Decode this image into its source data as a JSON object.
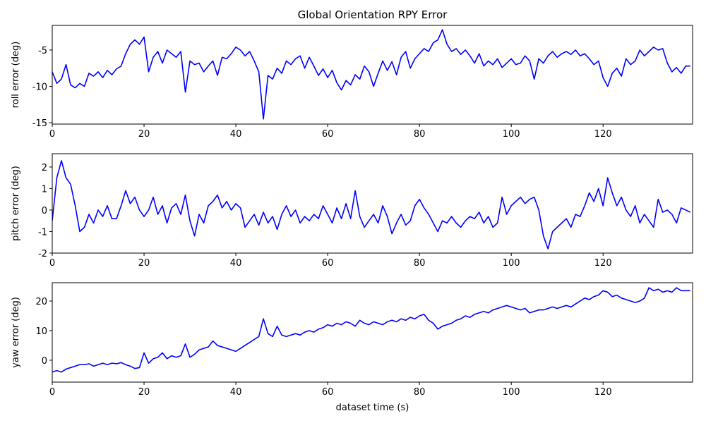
{
  "chart_data": [
    {
      "type": "line",
      "title": "Global Orientation RPY Error",
      "y_label": "roll error (deg)",
      "x": [
        0,
        1,
        2,
        3,
        4,
        5,
        6,
        7,
        8,
        9,
        10,
        11,
        12,
        13,
        14,
        15,
        16,
        17,
        18,
        19,
        20,
        21,
        22,
        23,
        24,
        25,
        26,
        27,
        28,
        29,
        30,
        31,
        32,
        33,
        34,
        35,
        36,
        37,
        38,
        39,
        40,
        41,
        42,
        43,
        44,
        45,
        46,
        47,
        48,
        49,
        50,
        51,
        52,
        53,
        54,
        55,
        56,
        57,
        58,
        59,
        60,
        61,
        62,
        63,
        64,
        65,
        66,
        67,
        68,
        69,
        70,
        71,
        72,
        73,
        74,
        75,
        76,
        77,
        78,
        79,
        80,
        81,
        82,
        83,
        84,
        85,
        86,
        87,
        88,
        89,
        90,
        91,
        92,
        93,
        94,
        95,
        96,
        97,
        98,
        99,
        100,
        101,
        102,
        103,
        104,
        105,
        106,
        107,
        108,
        109,
        110,
        111,
        112,
        113,
        114,
        115,
        116,
        117,
        118,
        119,
        120,
        121,
        122,
        123,
        124,
        125,
        126,
        127,
        128,
        129,
        130,
        131,
        132,
        133,
        134,
        135,
        136,
        137,
        138,
        139
      ],
      "series": [
        {
          "color": "#0000ff",
          "values": [
            -8,
            -9.6,
            -9,
            -7,
            -9.8,
            -10.2,
            -9.6,
            -10,
            -8.2,
            -8.6,
            -8,
            -8.8,
            -7.8,
            -8.4,
            -7.6,
            -7.2,
            -5.5,
            -4.2,
            -3.6,
            -4.2,
            -3.2,
            -8,
            -6,
            -5.2,
            -6.8,
            -5,
            -5.5,
            -6,
            -5.2,
            -10.8,
            -6.5,
            -7,
            -6.8,
            -8,
            -7.2,
            -6.5,
            -8.5,
            -6,
            -6.2,
            -5.5,
            -4.6,
            -5,
            -5.8,
            -5.2,
            -6.5,
            -8,
            -14.5,
            -8.5,
            -9,
            -7.5,
            -8.2,
            -6.5,
            -7,
            -6.2,
            -5.8,
            -7.5,
            -6,
            -7.2,
            -8.5,
            -7.6,
            -8.8,
            -7.8,
            -9.5,
            -10.5,
            -9.2,
            -9.8,
            -8.4,
            -9,
            -7.2,
            -8,
            -10,
            -8.2,
            -6.5,
            -7.8,
            -6.6,
            -8.4,
            -6,
            -5.2,
            -7.5,
            -6.2,
            -5.5,
            -4.8,
            -5.2,
            -4,
            -3.6,
            -2.2,
            -4.2,
            -5.2,
            -4.8,
            -5.6,
            -5,
            -5.8,
            -6.8,
            -5.5,
            -7.2,
            -6.5,
            -7,
            -6.2,
            -7.4,
            -6.8,
            -6.2,
            -7,
            -6.8,
            -5.8,
            -6.5,
            -9,
            -6.2,
            -6.8,
            -5.8,
            -5.2,
            -6,
            -5.5,
            -5.2,
            -5.6,
            -5,
            -5.8,
            -5.5,
            -6.2,
            -7,
            -6.5,
            -8.8,
            -10,
            -8.2,
            -7.5,
            -8.6,
            -6.2,
            -7,
            -6.5,
            -5,
            -5.8,
            -5.2,
            -4.6,
            -5,
            -4.8,
            -6.8,
            -8,
            -7.4,
            -8.2,
            -7.2,
            -7.2
          ]
        }
      ],
      "xlim": [
        0,
        139.5
      ],
      "ylim": [
        -15.2,
        -1.6
      ],
      "xticks": [
        0,
        20,
        40,
        60,
        80,
        100,
        120
      ],
      "yticks": [
        -15,
        -10,
        -5
      ]
    },
    {
      "type": "line",
      "y_label": "pitch error (deg)",
      "x": [
        0,
        1,
        2,
        3,
        4,
        5,
        6,
        7,
        8,
        9,
        10,
        11,
        12,
        13,
        14,
        15,
        16,
        17,
        18,
        19,
        20,
        21,
        22,
        23,
        24,
        25,
        26,
        27,
        28,
        29,
        30,
        31,
        32,
        33,
        34,
        35,
        36,
        37,
        38,
        39,
        40,
        41,
        42,
        43,
        44,
        45,
        46,
        47,
        48,
        49,
        50,
        51,
        52,
        53,
        54,
        55,
        56,
        57,
        58,
        59,
        60,
        61,
        62,
        63,
        64,
        65,
        66,
        67,
        68,
        69,
        70,
        71,
        72,
        73,
        74,
        75,
        76,
        77,
        78,
        79,
        80,
        81,
        82,
        83,
        84,
        85,
        86,
        87,
        88,
        89,
        90,
        91,
        92,
        93,
        94,
        95,
        96,
        97,
        98,
        99,
        100,
        101,
        102,
        103,
        104,
        105,
        106,
        107,
        108,
        109,
        110,
        111,
        112,
        113,
        114,
        115,
        116,
        117,
        118,
        119,
        120,
        121,
        122,
        123,
        124,
        125,
        126,
        127,
        128,
        129,
        130,
        131,
        132,
        133,
        134,
        135,
        136,
        137,
        138,
        139
      ],
      "series": [
        {
          "color": "#0000ff",
          "values": [
            -0.5,
            1.5,
            2.3,
            1.5,
            1.2,
            0.2,
            -1,
            -0.8,
            -0.2,
            -0.6,
            0,
            -0.3,
            0.2,
            -0.4,
            -0.4,
            0.2,
            0.9,
            0.3,
            0.6,
            0,
            -0.3,
            0,
            0.6,
            -0.2,
            0.2,
            -0.6,
            0.1,
            0.3,
            -0.2,
            0.7,
            -0.5,
            -1.2,
            -0.2,
            -0.6,
            0.2,
            0.4,
            0.7,
            0.1,
            0.4,
            0,
            0.3,
            0.1,
            -0.8,
            -0.5,
            -0.2,
            -0.7,
            -0.1,
            -0.6,
            -0.3,
            -0.9,
            -0.2,
            0.2,
            -0.3,
            0,
            -0.6,
            -0.3,
            -0.5,
            -0.2,
            -0.4,
            0.2,
            -0.2,
            -0.6,
            0.1,
            -0.4,
            0.3,
            -0.4,
            0.9,
            -0.3,
            -0.8,
            -0.5,
            -0.2,
            -0.6,
            0.2,
            -0.3,
            -1.1,
            -0.6,
            -0.2,
            -0.7,
            -0.5,
            0.2,
            0.5,
            0.1,
            -0.2,
            -0.6,
            -1,
            -0.5,
            -0.6,
            -0.3,
            -0.6,
            -0.8,
            -0.5,
            -0.3,
            -0.4,
            -0.1,
            -0.6,
            -0.3,
            -0.8,
            -0.6,
            0.6,
            -0.2,
            0.2,
            0.4,
            0.6,
            0.3,
            0.5,
            0.6,
            0,
            -1.2,
            -1.8,
            -1,
            -0.8,
            -0.6,
            -0.4,
            -0.8,
            -0.2,
            -0.3,
            0.2,
            0.8,
            0.4,
            1,
            0.2,
            1.5,
            0.8,
            0.2,
            0.6,
            0,
            -0.3,
            0.2,
            -0.6,
            -0.2,
            -0.5,
            -0.8,
            0.5,
            -0.1,
            0,
            -0.2,
            -0.6,
            0.1,
            0,
            -0.1
          ]
        }
      ],
      "xlim": [
        0,
        139.5
      ],
      "ylim": [
        -2,
        2.62
      ],
      "xticks": [
        0,
        20,
        40,
        60,
        80,
        100,
        120
      ],
      "yticks": [
        -2,
        -1,
        0,
        1,
        2
      ]
    },
    {
      "type": "line",
      "y_label": "yaw error (deg)",
      "x_label": "dataset time (s)",
      "x": [
        0,
        1,
        2,
        3,
        4,
        5,
        6,
        7,
        8,
        9,
        10,
        11,
        12,
        13,
        14,
        15,
        16,
        17,
        18,
        19,
        20,
        21,
        22,
        23,
        24,
        25,
        26,
        27,
        28,
        29,
        30,
        31,
        32,
        33,
        34,
        35,
        36,
        37,
        38,
        39,
        40,
        41,
        42,
        43,
        44,
        45,
        46,
        47,
        48,
        49,
        50,
        51,
        52,
        53,
        54,
        55,
        56,
        57,
        58,
        59,
        60,
        61,
        62,
        63,
        64,
        65,
        66,
        67,
        68,
        69,
        70,
        71,
        72,
        73,
        74,
        75,
        76,
        77,
        78,
        79,
        80,
        81,
        82,
        83,
        84,
        85,
        86,
        87,
        88,
        89,
        90,
        91,
        92,
        93,
        94,
        95,
        96,
        97,
        98,
        99,
        100,
        101,
        102,
        103,
        104,
        105,
        106,
        107,
        108,
        109,
        110,
        111,
        112,
        113,
        114,
        115,
        116,
        117,
        118,
        119,
        120,
        121,
        122,
        123,
        124,
        125,
        126,
        127,
        128,
        129,
        130,
        131,
        132,
        133,
        134,
        135,
        136,
        137,
        138,
        139
      ],
      "series": [
        {
          "color": "#0000ff",
          "values": [
            -4,
            -3.5,
            -4,
            -3,
            -2.5,
            -2,
            -1.5,
            -1.5,
            -1.2,
            -2,
            -1.5,
            -1,
            -1.5,
            -1,
            -1.2,
            -0.8,
            -1.5,
            -2,
            -2.8,
            -2.5,
            2.5,
            -1,
            0.5,
            1,
            2.5,
            0.5,
            1.5,
            1,
            1.5,
            5.5,
            1,
            2,
            3.5,
            4,
            4.5,
            6.5,
            5,
            4.5,
            4,
            3.5,
            3,
            4,
            5,
            6,
            7,
            8,
            14,
            9,
            8,
            11.5,
            8.5,
            8,
            8.5,
            9,
            8.5,
            9.5,
            10,
            9.5,
            10.5,
            11,
            12,
            11.5,
            12.5,
            12,
            13,
            12.5,
            11.5,
            13.5,
            12.5,
            12,
            13,
            12.5,
            12,
            13,
            13.5,
            13,
            14,
            13.5,
            14.5,
            14,
            15,
            15.5,
            13.5,
            12.5,
            10.5,
            11.5,
            12,
            12.5,
            13.5,
            14,
            15,
            14.5,
            15.5,
            16,
            16.5,
            16,
            17,
            17.5,
            18,
            18.5,
            18,
            17.5,
            17,
            17.5,
            16,
            16.5,
            17,
            17,
            17.5,
            18,
            17.5,
            18,
            18.5,
            18,
            19,
            20,
            21,
            20.5,
            21.5,
            22,
            23.5,
            23,
            21.5,
            22,
            21,
            20.5,
            20,
            19.5,
            20,
            21,
            24.5,
            23.5,
            24,
            23,
            23.5,
            23,
            24.5,
            23.5,
            23.5,
            23.5
          ]
        }
      ],
      "xlim": [
        0,
        139.5
      ],
      "ylim": [
        -7.4,
        26.2
      ],
      "xticks": [
        0,
        20,
        40,
        60,
        80,
        100,
        120
      ],
      "yticks": [
        0,
        10,
        20
      ]
    }
  ]
}
